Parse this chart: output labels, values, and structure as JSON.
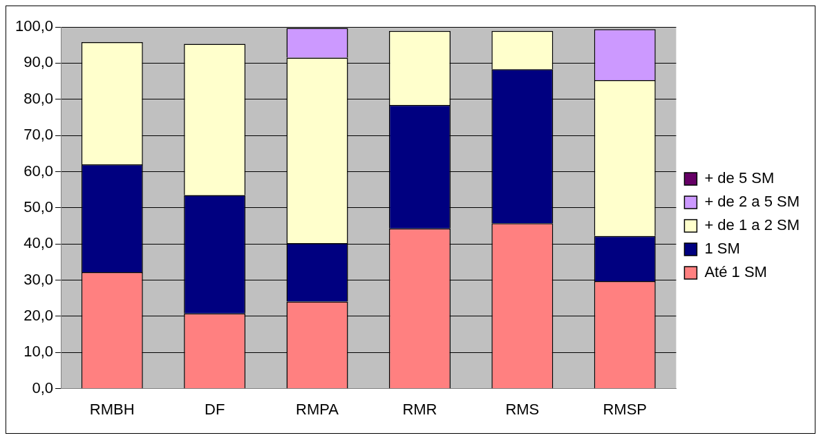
{
  "chart_data": {
    "type": "bar",
    "stacked": true,
    "categories": [
      "RMBH",
      "DF",
      "RMPA",
      "RMR",
      "RMS",
      "RMSP"
    ],
    "series": [
      {
        "name": "Até 1 SM",
        "color": "#ff8080",
        "values": [
          32.2,
          20.8,
          24.1,
          44.3,
          45.7,
          29.7
        ]
      },
      {
        "name": "1 SM",
        "color": "#000080",
        "values": [
          29.8,
          32.7,
          16.1,
          34.1,
          42.6,
          12.5
        ]
      },
      {
        "name": "+ de 1 a 2 SM",
        "color": "#ffffcc",
        "values": [
          33.8,
          41.8,
          51.3,
          20.5,
          10.6,
          43.1
        ]
      },
      {
        "name": "+ de 2 a 5 SM",
        "color": "#cc99ff",
        "values": [
          0,
          0,
          8.2,
          0,
          0,
          14.1
        ]
      },
      {
        "name": "+ de 5 SM",
        "color": "#660066",
        "values": [
          0,
          0,
          0,
          0,
          0,
          0
        ]
      }
    ],
    "ylim": [
      0,
      100
    ],
    "yticks": [
      {
        "value": 0,
        "label": "0,0"
      },
      {
        "value": 10,
        "label": "10,0"
      },
      {
        "value": 20,
        "label": "20,0"
      },
      {
        "value": 30,
        "label": "30,0"
      },
      {
        "value": 40,
        "label": "40,0"
      },
      {
        "value": 50,
        "label": "50,0"
      },
      {
        "value": 60,
        "label": "60,0"
      },
      {
        "value": 70,
        "label": "70,0"
      },
      {
        "value": 80,
        "label": "80,0"
      },
      {
        "value": 90,
        "label": "90,0"
      },
      {
        "value": 100,
        "label": "100,0"
      }
    ],
    "grid": "y",
    "legend": "right"
  }
}
